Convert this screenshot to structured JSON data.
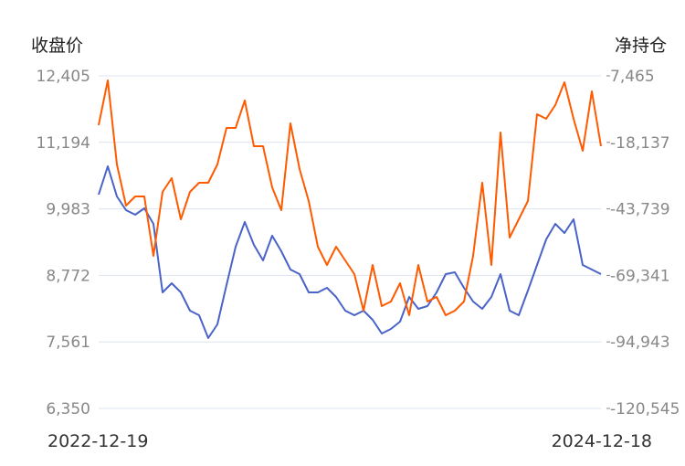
{
  "chart_data": {
    "type": "line",
    "left_axis": {
      "label": "收盘价",
      "ticks": [
        "12,405",
        "11,194",
        "9,983",
        "8,772",
        "7,561",
        "6,350"
      ],
      "range": [
        6350,
        12405
      ]
    },
    "right_axis": {
      "label": "净持仓",
      "ticks": [
        "7,465",
        "-18,137",
        "-43,739",
        "-69,341",
        "-94,943",
        "-120,545"
      ],
      "range": [
        -120545,
        7465
      ]
    },
    "x_labels": [
      "2022-12-19",
      "2024-12-18"
    ],
    "grid": true,
    "series": [
      {
        "name": "收盘价",
        "axis": "left",
        "color": "#4a63c8",
        "values": [
          10242,
          10758,
          10209,
          9960,
          9876,
          9993,
          9710,
          8463,
          8629,
          8463,
          8130,
          8047,
          7631,
          7880,
          8596,
          9294,
          9743,
          9328,
          9045,
          9494,
          9211,
          8878,
          8795,
          8463,
          8463,
          8546,
          8379,
          8130,
          8047,
          8130,
          7963,
          7714,
          7797,
          7930,
          8379,
          8163,
          8213,
          8463,
          8795,
          8828,
          8546,
          8296,
          8163,
          8379,
          8795,
          8130,
          8047,
          8496,
          8962,
          9427,
          9710,
          9544,
          9793,
          8962,
          8878,
          8795
        ]
      },
      {
        "name": "净持仓",
        "axis": "right",
        "color": "#ff5a00",
        "values": [
          -11527,
          5706,
          -26650,
          -42476,
          -38959,
          -38959,
          -61820,
          -37201,
          -31925,
          -47752,
          -37201,
          -33684,
          -33684,
          -26650,
          -12582,
          -12582,
          -2031,
          -19616,
          -19616,
          -35442,
          -44235,
          -10823,
          -28408,
          -40718,
          -58303,
          -65337,
          -58303,
          -63578,
          -68854,
          -82922,
          -65337,
          -81163,
          -79405,
          -72371,
          -84680,
          -65337,
          -79405,
          -77646,
          -84680,
          -82922,
          -79405,
          -61820,
          -33684,
          -65337,
          -14340,
          -54786,
          -47752,
          -40718,
          -7306,
          -9065,
          -3789,
          5003,
          -9065,
          -21374,
          1486,
          -19616
        ]
      }
    ]
  }
}
